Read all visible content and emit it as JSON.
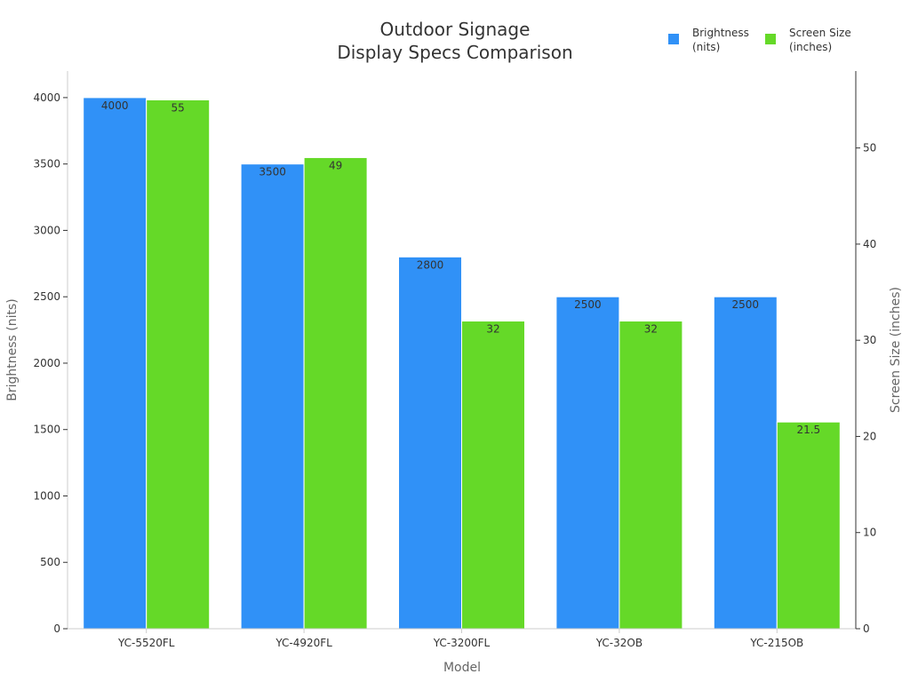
{
  "chart_data": {
    "type": "bar",
    "title_lines": [
      "Outdoor Signage",
      "Display Specs Comparison"
    ],
    "xlabel": "Model",
    "ylabel_left": "Brightness (nits)",
    "ylabel_right": "Screen Size (inches)",
    "categories": [
      "YC-5520FL",
      "YC-4920FL",
      "YC-3200FL",
      "YC-32OB",
      "YC-215OB"
    ],
    "series": [
      {
        "name": "Brightness (nits)",
        "legend_lines": [
          "Brightness",
          "(nits)"
        ],
        "axis": "left",
        "color": "#3091F7",
        "values": [
          4000,
          3500,
          2800,
          2500,
          2500
        ],
        "value_labels": [
          "4000",
          "3500",
          "2800",
          "2500",
          "2500"
        ]
      },
      {
        "name": "Screen Size (inches)",
        "legend_lines": [
          "Screen Size",
          "(inches)"
        ],
        "axis": "right",
        "color": "#65D928",
        "values": [
          55,
          49,
          32,
          32,
          21.5
        ],
        "value_labels": [
          "55",
          "49",
          "32",
          "32",
          "21.5"
        ]
      }
    ],
    "ylim_left": [
      0,
      4200
    ],
    "yticks_left": [
      0,
      500,
      1000,
      1500,
      2000,
      2500,
      3000,
      3500,
      4000
    ],
    "ylim_right": [
      0,
      58
    ],
    "yticks_right": [
      0,
      10,
      20,
      30,
      40,
      50
    ],
    "grid": false,
    "legend_position": "top-right"
  }
}
